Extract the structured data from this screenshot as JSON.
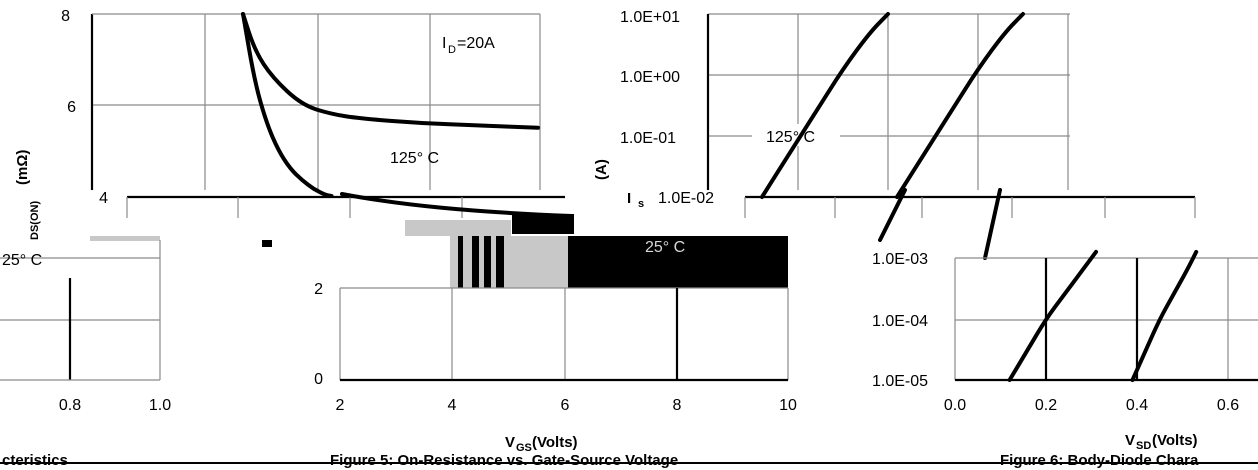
{
  "chart_data": [
    {
      "id": "rdson-top",
      "type": "line",
      "ylabel": "(mΩ)",
      "ylabel_sub": "DS(ON)",
      "yticks": [
        "8",
        "6",
        "4"
      ],
      "ylim": [
        4,
        8
      ],
      "annotations": [
        "I",
        "D",
        "=20A",
        "125° C"
      ],
      "series": [
        {
          "x": [
            1.0,
            1.2,
            1.5,
            2.0,
            2.5,
            3.0,
            4.0,
            5.0,
            6.0
          ],
          "y": [
            8.0,
            7.2,
            6.6,
            6.0,
            5.8,
            5.7,
            5.6,
            5.55,
            5.5
          ]
        },
        {
          "x": [
            1.0,
            1.2,
            1.4,
            1.6,
            1.8,
            2.0,
            2.2,
            2.4,
            2.5
          ],
          "y": [
            8.0,
            6.5,
            5.6,
            5.0,
            4.6,
            4.35,
            4.15,
            4.02,
            4.0
          ]
        }
      ]
    },
    {
      "id": "vgs-bottom",
      "type": "line",
      "xlabel": "V",
      "xlabel_sub": "GS",
      "xlabel_unit": " (Volts)",
      "xticks": [
        "2",
        "4",
        "6",
        "8",
        "10"
      ],
      "xlim": [
        2,
        10
      ],
      "yticks": [
        "2",
        "0"
      ],
      "annotations": [
        "25° C",
        "25° C"
      ]
    },
    {
      "id": "is-top",
      "type": "line",
      "ylabel": "(A)",
      "ylabel_sym": "I",
      "ylabel_sub": "s",
      "yticks": [
        "1.0E+01",
        "1.0E+00",
        "1.0E-01",
        "1.0E-02"
      ],
      "annotations": [
        "125° C"
      ],
      "series": [
        {
          "x": [
            0.06,
            0.09,
            0.12,
            0.15,
            0.18,
            0.2
          ],
          "y": [
            -2.0,
            -1.3,
            -0.6,
            0.1,
            0.7,
            1.0
          ]
        },
        {
          "x": [
            0.21,
            0.24,
            0.27,
            0.3,
            0.33,
            0.35
          ],
          "y": [
            -2.0,
            -1.3,
            -0.6,
            0.1,
            0.7,
            1.0
          ]
        }
      ]
    },
    {
      "id": "vsd-bottom",
      "type": "line",
      "xlabel": "V",
      "xlabel_sub": "SD",
      "xlabel_unit": " (Volts)",
      "xticks": [
        "0.0",
        "0.2",
        "0.4",
        "0.6"
      ],
      "xlim": [
        0.0,
        0.6
      ],
      "yticks": [
        "1.0E-03",
        "1.0E-04",
        "1.0E-05"
      ],
      "ylim_log": [
        -5,
        -3
      ],
      "series": [
        {
          "x": [
            0.12,
            0.16,
            0.2,
            0.24,
            0.28,
            0.31
          ],
          "y": [
            -5.0,
            -4.5,
            -4.0,
            -3.6,
            -3.2,
            -2.9
          ]
        },
        {
          "x": [
            0.39,
            0.42,
            0.45,
            0.48,
            0.51,
            0.53
          ],
          "y": [
            -5.0,
            -4.5,
            -4.0,
            -3.6,
            -3.2,
            -2.9
          ]
        }
      ]
    },
    {
      "id": "left-fragment",
      "type": "line",
      "xticks": [
        "0.8",
        "1.0"
      ],
      "annotations": [
        "25° C"
      ]
    }
  ],
  "captions": {
    "left": "cteristics",
    "middle": "Figure 5: On-Resistance vs. Gate-Source Voltage",
    "right": "Figure 6: Body-Diode Chara"
  },
  "colors": {
    "ink": "#000000",
    "grid": "#8a8a8a",
    "gray_fill": "#c8c8c8"
  }
}
